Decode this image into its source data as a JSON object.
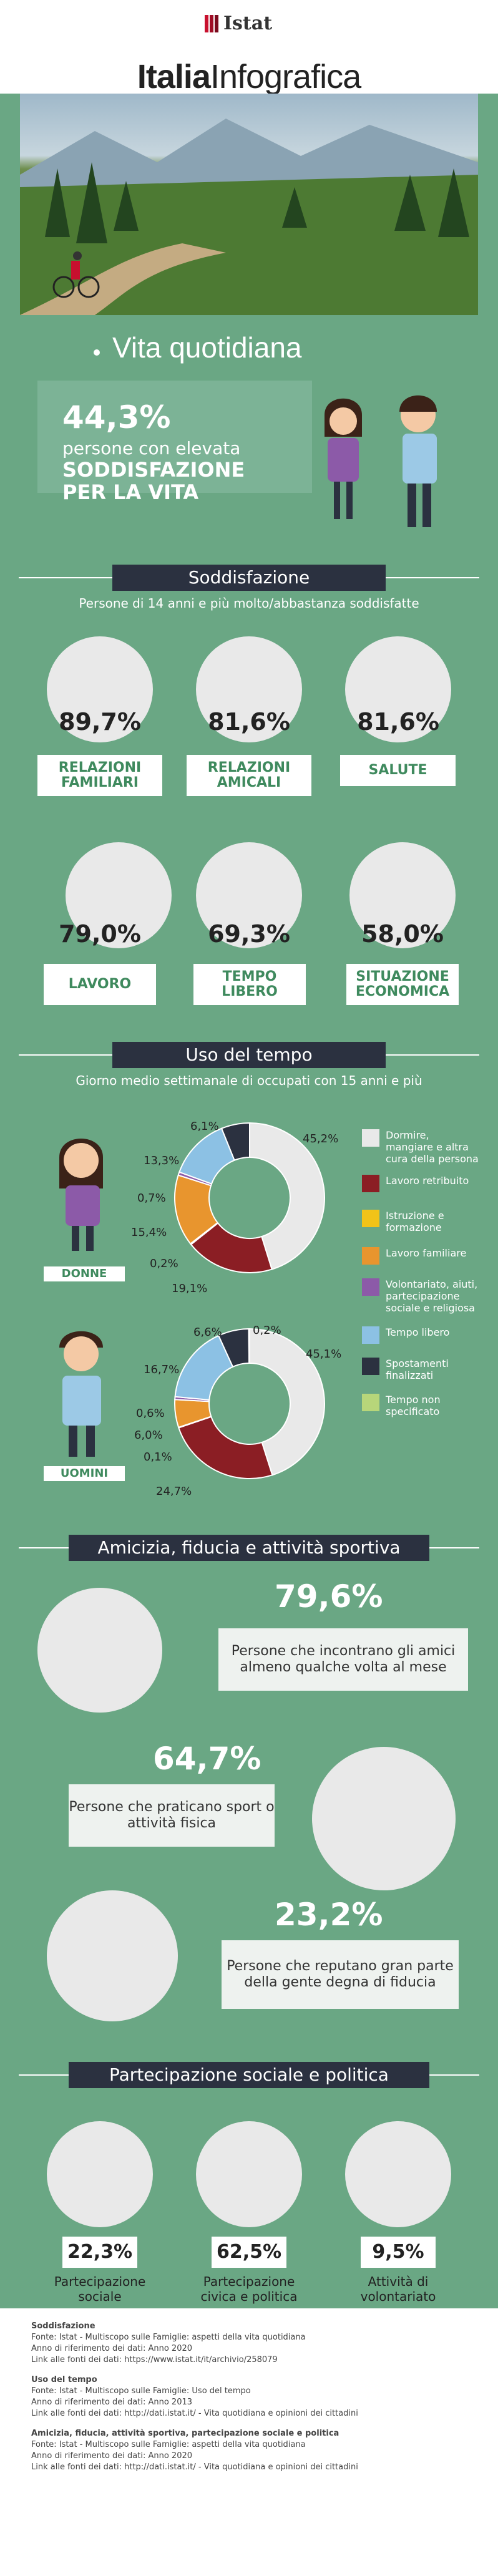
{
  "header": {
    "logo": "Istat",
    "brand_part1": "Italia",
    "brand_part2": "Infografica"
  },
  "main_title": "Vita quotidiana",
  "hero": {
    "value": "44,3%",
    "line1": "persone con elevata",
    "line2": "SODDISFAZIONE",
    "line3": "PER LA VITA"
  },
  "sections": {
    "satisfaction": {
      "title": "Soddisfazione",
      "subtitle": "Persone di 14 anni e più molto/abbastanza soddisfatte",
      "items": [
        {
          "value": "89,7%",
          "label1": "RELAZIONI",
          "label2": "FAMILIARI"
        },
        {
          "value": "81,6%",
          "label1": "RELAZIONI",
          "label2": "AMICALI"
        },
        {
          "value": "81,6%",
          "label1": "SALUTE",
          "label2": ""
        },
        {
          "value": "79,0%",
          "label1": "LAVORO",
          "label2": ""
        },
        {
          "value": "69,3%",
          "label1": "TEMPO",
          "label2": "LIBERO"
        },
        {
          "value": "58,0%",
          "label1": "SITUAZIONE",
          "label2": "ECONOMICA"
        }
      ]
    },
    "time_use": {
      "title": "Uso del tempo",
      "subtitle": "Giorno medio settimanale di occupati con 15 anni e più",
      "women_label": "DONNE",
      "men_label": "UOMINI"
    },
    "friendship": {
      "title": "Amicizia, fiducia e attività sportiva",
      "items": [
        {
          "value": "79,6%",
          "text": "Persone che incontrano gli amici almeno qualche volta al mese"
        },
        {
          "value": "64,7%",
          "text": "Persone che praticano sport o attività fisica"
        },
        {
          "value": "23,2%",
          "text": "Persone che reputano gran parte della gente degna di fiducia"
        }
      ]
    },
    "participation": {
      "title": "Partecipazione sociale e politica",
      "items": [
        {
          "value": "22,3%",
          "label1": "Partecipazione",
          "label2": "sociale"
        },
        {
          "value": "62,5%",
          "label1": "Partecipazione",
          "label2": "civica e politica"
        },
        {
          "value": "9,5%",
          "label1": "Attività di",
          "label2": "volontariato"
        }
      ]
    }
  },
  "chart_data": [
    {
      "type": "pie",
      "title": "DONNE",
      "categories": [
        "Dormire, mangiare e altra cura della persona",
        "Lavoro retribuito",
        "Istruzione e formazione",
        "Lavoro familiare",
        "Volontariato, aiuti, partecipazione sociale e religiosa",
        "Tempo libero",
        "Spostamenti finalizzati",
        "Tempo non specificato"
      ],
      "values": [
        45.2,
        19.1,
        0.2,
        15.4,
        0.7,
        13.3,
        6.1,
        0
      ],
      "labels": [
        "45,2%",
        "19,1%",
        "0,2%",
        "15,4%",
        "0,7%",
        "13,3%",
        "6,1%",
        ""
      ]
    },
    {
      "type": "pie",
      "title": "UOMINI",
      "categories": [
        "Dormire, mangiare e altra cura della persona",
        "Lavoro retribuito",
        "Istruzione e formazione",
        "Lavoro familiare",
        "Volontariato, aiuti, partecipazione sociale e religiosa",
        "Tempo libero",
        "Spostamenti finalizzati",
        "Tempo non specificato"
      ],
      "values": [
        45.1,
        24.7,
        0.1,
        6.0,
        0.6,
        16.7,
        6.6,
        0.2
      ],
      "labels": [
        "45,1%",
        "24,7%",
        "0,1%",
        "6,0%",
        "0,6%",
        "16,7%",
        "6,6%",
        "0,2%"
      ]
    }
  ],
  "legend": [
    {
      "label": "Dormire, mangiare e altra cura della persona",
      "color": "#e9e9e9"
    },
    {
      "label": "Lavoro retribuito",
      "color": "#8b1e24"
    },
    {
      "label": "Istruzione e formazione",
      "color": "#f2c318"
    },
    {
      "label": "Lavoro familiare",
      "color": "#e8952e"
    },
    {
      "label": "Volontariato, aiuti, partecipazione sociale e religiosa",
      "color": "#8c5aa8"
    },
    {
      "label": "Tempo libero",
      "color": "#8cc1e4"
    },
    {
      "label": "Spostamenti finalizzati",
      "color": "#2b3140"
    },
    {
      "label": "Tempo non specificato",
      "color": "#b7d67a"
    }
  ],
  "footer": {
    "blocks": [
      {
        "title": "Soddisfazione",
        "l1": "Fonte: Istat - Multiscopo sulle Famiglie: aspetti della vita quotidiana",
        "l2": "Anno di riferimento dei dati: Anno 2020",
        "l3": "Link alle fonti dei dati: https://www.istat.it/it/archivio/258079"
      },
      {
        "title": "Uso del tempo",
        "l1": "Fonte: Istat - Multiscopo sulle Famiglie: Uso del tempo",
        "l2": "Anno di riferimento dei dati: Anno 2013",
        "l3": "Link alle fonti dei dati: http://dati.istat.it/ - Vita quotidiana e opinioni dei cittadini"
      },
      {
        "title": "Amicizia, fiducia, attività sportiva, partecipazione sociale e politica",
        "l1": "Fonte: Istat - Multiscopo sulle Famiglie: aspetti della vita quotidiana",
        "l2": "Anno di riferimento dei dati: Anno 2020",
        "l3": "Link alle fonti dei dati: http://dati.istat.it/ - Vita quotidiana e opinioni dei cittadini"
      }
    ]
  }
}
